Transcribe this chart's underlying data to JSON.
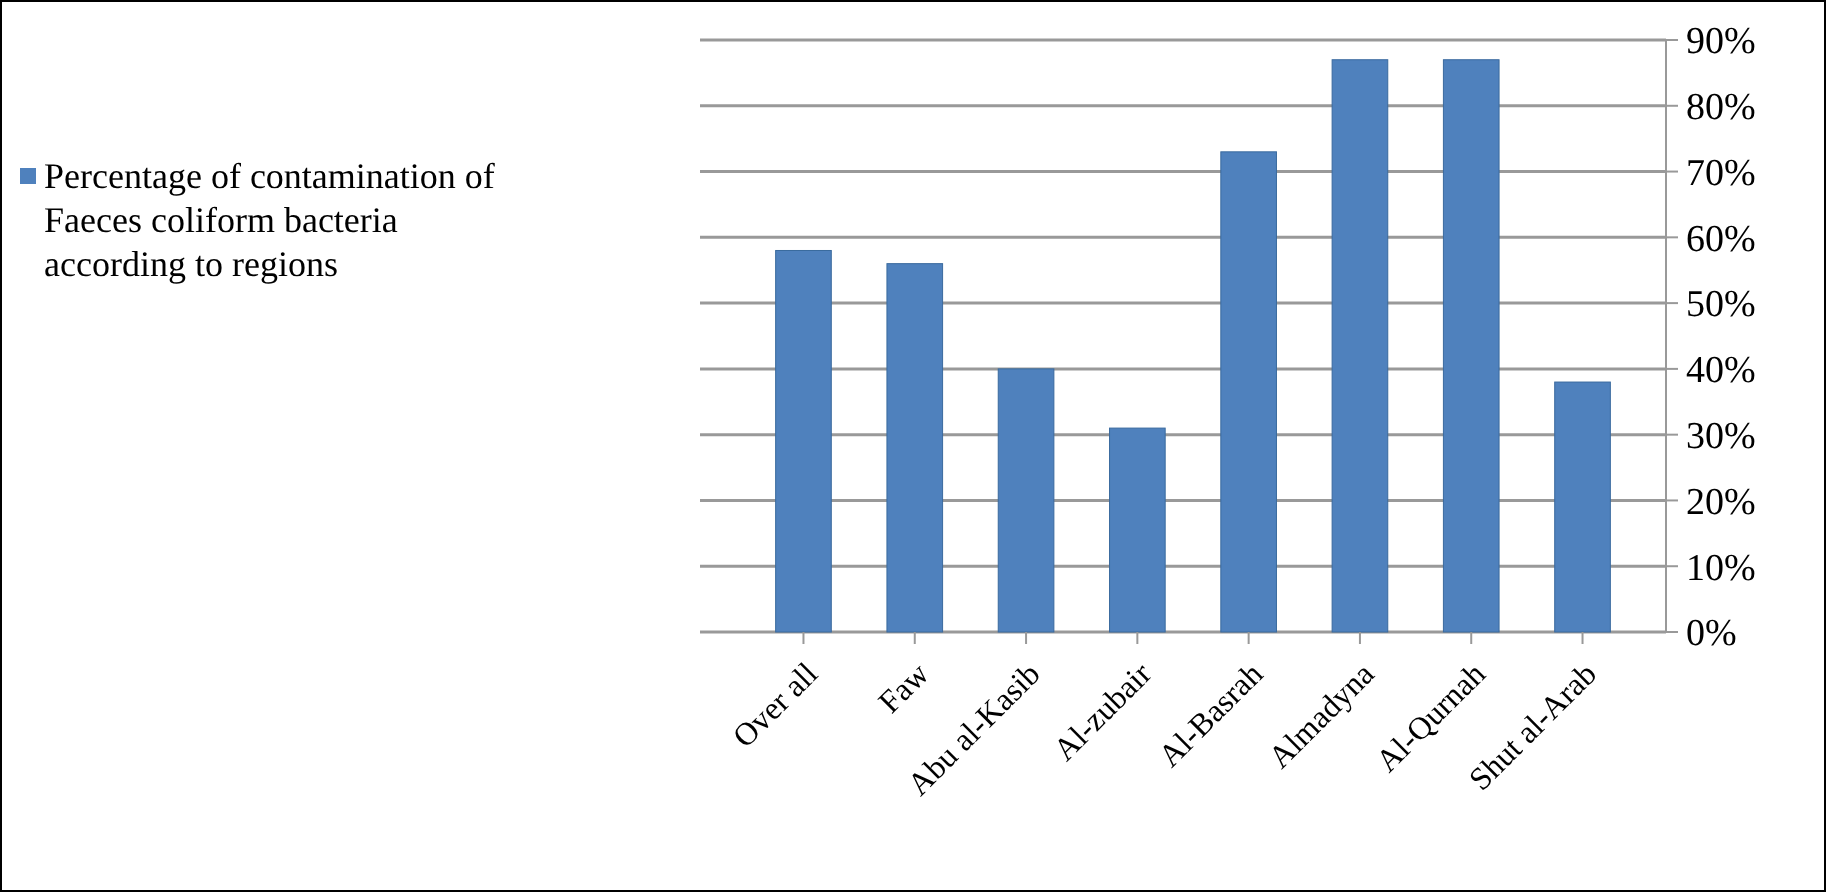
{
  "chart_data": {
    "type": "bar",
    "categories": [
      "Over all",
      "Faw",
      "Abu al-Kasib",
      "Al-zubair",
      "Al-Basrah",
      "Almadyna",
      "Al-Qurnah",
      "Shut al-Arab"
    ],
    "series": [
      {
        "name": "Percentage of contamination of Faeces coliform bacteria according to regions",
        "color": "#4f81bd",
        "values": [
          58,
          56,
          40,
          31,
          73,
          87,
          87,
          38
        ]
      }
    ],
    "ylim": [
      0,
      90
    ],
    "yticks": [
      {
        "value": 0,
        "label": "0%"
      },
      {
        "value": 10,
        "label": "10%"
      },
      {
        "value": 20,
        "label": "20%"
      },
      {
        "value": 30,
        "label": "30%"
      },
      {
        "value": 40,
        "label": "40%"
      },
      {
        "value": 50,
        "label": "50%"
      },
      {
        "value": 60,
        "label": "60%"
      },
      {
        "value": 70,
        "label": "70%"
      },
      {
        "value": 80,
        "label": "80%"
      },
      {
        "value": 90,
        "label": "90%"
      }
    ],
    "grid": "y",
    "legend": "left"
  }
}
